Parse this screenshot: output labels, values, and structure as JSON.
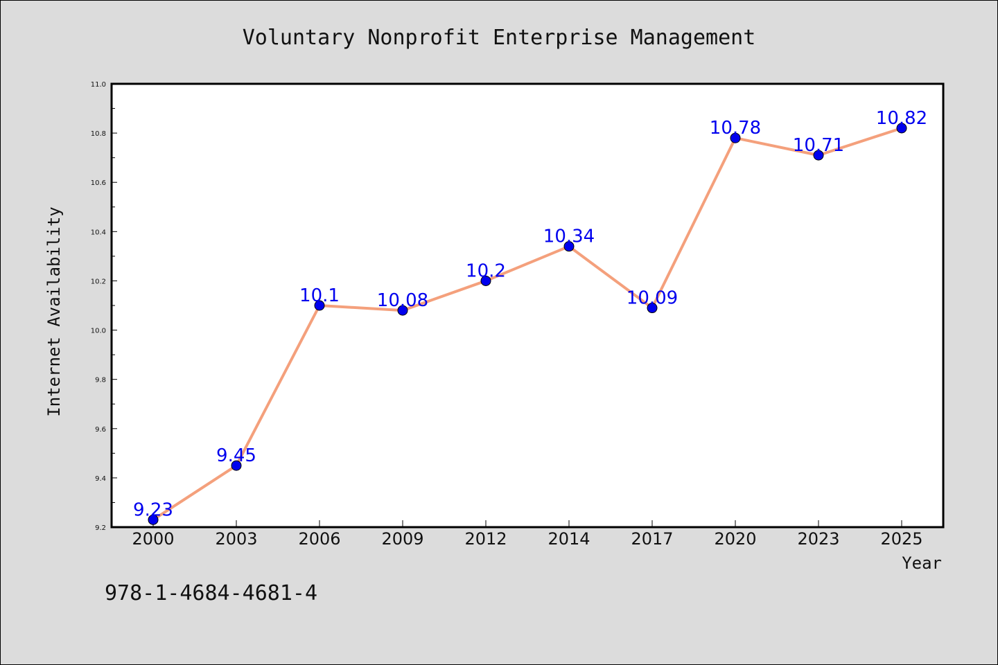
{
  "chart_data": {
    "type": "line",
    "title": "Voluntary Nonprofit Enterprise Management",
    "xlabel": "Year",
    "ylabel": "Internet Availability",
    "categories": [
      "2000",
      "2003",
      "2006",
      "2009",
      "2012",
      "2014",
      "2017",
      "2020",
      "2023",
      "2025"
    ],
    "series": [
      {
        "values": [
          9.23,
          9.45,
          10.1,
          10.08,
          10.2,
          10.34,
          10.09,
          10.78,
          10.71,
          10.82
        ],
        "data_labels": [
          "9.23",
          "9.45",
          "10.1",
          "10.08",
          "10.2",
          "10.34",
          "10.09",
          "10.78",
          "10.71",
          "10.82"
        ]
      }
    ],
    "ylim": [
      9.2,
      11.0
    ],
    "yticks": [
      "9.2",
      "9.4",
      "9.6",
      "9.8",
      "10.0",
      "10.2",
      "10.4",
      "10.6",
      "10.8",
      "11.0"
    ],
    "grid": false,
    "legend": "none"
  },
  "annotation": {
    "isbn": "978-1-4684-4681-4"
  },
  "colors": {
    "line": "#f4a07c",
    "marker": "#0000ee",
    "data_label": "#0000ee",
    "background": "#dcdcdc",
    "plot_background": "#ffffff"
  }
}
